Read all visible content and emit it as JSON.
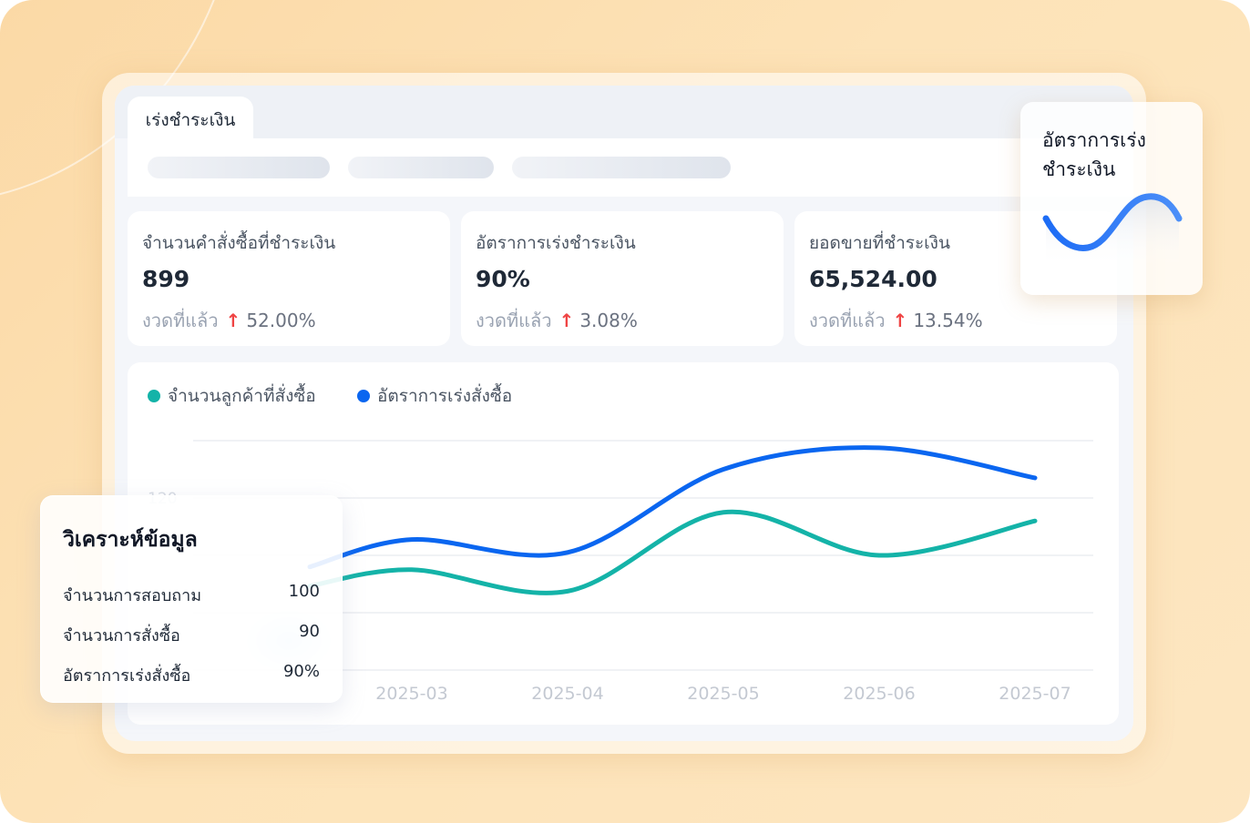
{
  "window": {
    "tab_label": "เร่งชำระเงิน"
  },
  "kpis": [
    {
      "label": "จำนวนคำสั่งซื้อที่ชำระเงิน",
      "value": "899",
      "compare_label": "งวดที่แล้ว",
      "trend": "up",
      "change": "52.00%"
    },
    {
      "label": "อัตราการเร่งชำระเงิน",
      "value": "90%",
      "compare_label": "งวดที่แล้ว",
      "trend": "up",
      "change": "3.08%"
    },
    {
      "label": "ยอดขายที่ชำระเงิน",
      "value": "65,524.00",
      "compare_label": "งวดที่แล้ว",
      "trend": "up",
      "change": "13.54%"
    }
  ],
  "icons": {
    "trend_up": "↑"
  },
  "colors": {
    "teal": "#14b3a8",
    "blue": "#0a66f0",
    "up": "#ef4444"
  },
  "chart_data": {
    "type": "line",
    "legend": [
      {
        "name": "จำนวนลูกค้าที่สั่งซื้อ",
        "color": "#14b3a8"
      },
      {
        "name": "อัตราการเร่งสั่งซื้อ",
        "color": "#0a66f0"
      }
    ],
    "categories": [
      "2025-03",
      "2025-04",
      "2025-05",
      "2025-06",
      "2025-07"
    ],
    "yticks_visible": [
      "120"
    ],
    "series": [
      {
        "name": "จำนวนลูกค้าที่สั่งซื้อ",
        "color": "#14b3a8",
        "values": [
          70,
          55,
          110,
          80,
          104
        ]
      },
      {
        "name": "อัตราการเร่งสั่งซื้อ",
        "color": "#0a66f0",
        "values": [
          91,
          82,
          140,
          155,
          134
        ]
      }
    ],
    "ylim": [
      0,
      160
    ],
    "grid": true,
    "legend_position": "top-left"
  },
  "mini_card": {
    "title": "อัตราการเร่งชำระเงิน"
  },
  "analysis_card": {
    "title": "วิเคราะห์ข้อมูล",
    "rows": [
      {
        "label": "จำนวนการสอบถาม",
        "value": "100"
      },
      {
        "label": "จำนวนการสั่งซื้อ",
        "value": "90"
      },
      {
        "label": "อัตราการเร่งสั่งซื้อ",
        "value": "90%"
      }
    ]
  }
}
